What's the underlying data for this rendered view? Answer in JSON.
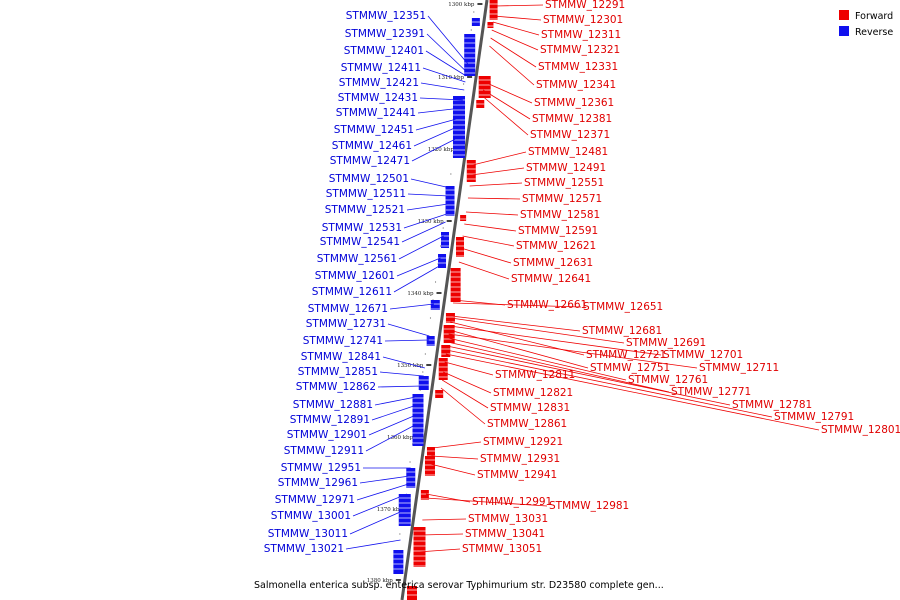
{
  "caption": "Salmonella enterica subsp. enterica serovar Typhimurium str. D23580 complete gen...",
  "legend": [
    {
      "label": "Forward",
      "color": "#ee0000"
    },
    {
      "label": "Reverse",
      "color": "#1010ee"
    }
  ],
  "kbp_ticks": [
    "1300 kbp",
    "1310 kbp",
    "1320 kbp",
    "1330 kbp",
    "1340 kbp",
    "1350 kbp",
    "1360 kbp",
    "1370 kbp",
    "1380 kbp"
  ],
  "forward_genes": [
    "STMMW_12291",
    "STMMW_12301",
    "STMMW_12311",
    "STMMW_12321",
    "STMMW_12331",
    "STMMW_12341",
    "STMMW_12361",
    "STMMW_12381",
    "STMMW_12371",
    "STMMW_12481",
    "STMMW_12491",
    "STMMW_12551",
    "STMMW_12571",
    "STMMW_12581",
    "STMMW_12591",
    "STMMW_12621",
    "STMMW_12631",
    "STMMW_12641",
    "STMMW_12661",
    "STMMW_12651",
    "STMMW_12681",
    "STMMW_12691",
    "STMMW_12721",
    "STMMW_12701",
    "STMMW_12751",
    "STMMW_12711",
    "STMMW_12811",
    "STMMW_12761",
    "STMMW_12821",
    "STMMW_12771",
    "STMMW_12831",
    "STMMW_12781",
    "STMMW_12791",
    "STMMW_12861",
    "STMMW_12801",
    "STMMW_12921",
    "STMMW_12931",
    "STMMW_12941",
    "STMMW_12991",
    "STMMW_12981",
    "STMMW_13031",
    "STMMW_13041",
    "STMMW_13051"
  ],
  "reverse_genes": [
    "STMMW_12351",
    "STMMW_12391",
    "STMMW_12401",
    "STMMW_12411",
    "STMMW_12421",
    "STMMW_12431",
    "STMMW_12441",
    "STMMW_12451",
    "STMMW_12461",
    "STMMW_12471",
    "STMMW_12501",
    "STMMW_12511",
    "STMMW_12521",
    "STMMW_12531",
    "STMMW_12541",
    "STMMW_12561",
    "STMMW_12601",
    "STMMW_12611",
    "STMMW_12671",
    "STMMW_12731",
    "STMMW_12741",
    "STMMW_12841",
    "STMMW_12851",
    "STMMW_12862",
    "STMMW_12881",
    "STMMW_12891",
    "STMMW_12901",
    "STMMW_12911",
    "STMMW_12951",
    "STMMW_12961",
    "STMMW_12971",
    "STMMW_13001",
    "STMMW_13011",
    "STMMW_13021"
  ]
}
